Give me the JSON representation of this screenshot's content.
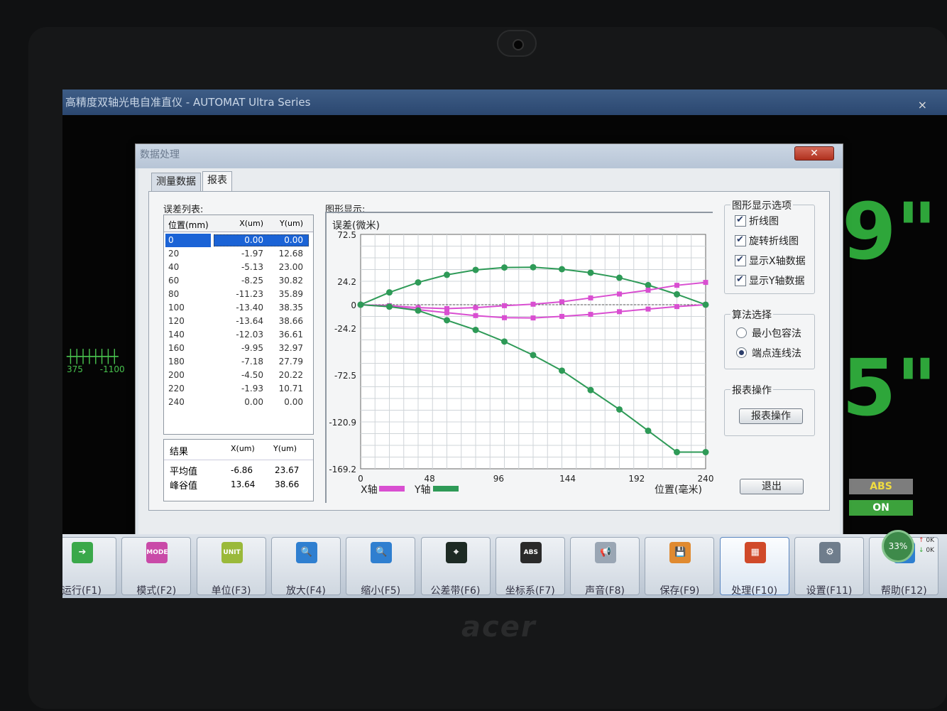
{
  "main_window": {
    "title": "高精度双轴光电自准直仪 - AUTOMAT Ultra Series",
    "close": "×"
  },
  "background": {
    "digit_top": "9\"",
    "digit_bottom": "5\"",
    "ruler_left": "375",
    "ruler_right": "-1100",
    "badge_abs": "ABS",
    "badge_on": "ON"
  },
  "dialog": {
    "title": "数据处理",
    "close": "✕",
    "tabs": [
      "测量数据",
      "报表"
    ],
    "error_list_label": "误差列表:",
    "graph_label": "图形显示:",
    "table_headers": {
      "pos": "位置(mm)",
      "x": "X(um)",
      "y": "Y(um)"
    },
    "rows": [
      {
        "pos": "0",
        "x": "0.00",
        "y": "0.00"
      },
      {
        "pos": "20",
        "x": "-1.97",
        "y": "12.68"
      },
      {
        "pos": "40",
        "x": "-5.13",
        "y": "23.00"
      },
      {
        "pos": "60",
        "x": "-8.25",
        "y": "30.82"
      },
      {
        "pos": "80",
        "x": "-11.23",
        "y": "35.89"
      },
      {
        "pos": "100",
        "x": "-13.40",
        "y": "38.35"
      },
      {
        "pos": "120",
        "x": "-13.64",
        "y": "38.66"
      },
      {
        "pos": "140",
        "x": "-12.03",
        "y": "36.61"
      },
      {
        "pos": "160",
        "x": "-9.95",
        "y": "32.97"
      },
      {
        "pos": "180",
        "x": "-7.18",
        "y": "27.79"
      },
      {
        "pos": "200",
        "x": "-4.50",
        "y": "20.22"
      },
      {
        "pos": "220",
        "x": "-1.93",
        "y": "10.71"
      },
      {
        "pos": "240",
        "x": "0.00",
        "y": "0.00"
      }
    ],
    "result_headers": {
      "label": "结果",
      "x": "X(um)",
      "y": "Y(um)"
    },
    "results": [
      {
        "label": "平均值",
        "x": "-6.86",
        "y": "23.67"
      },
      {
        "label": "峰谷值",
        "x": "13.64",
        "y": "38.66"
      }
    ],
    "options": {
      "display_title": "图形显示选项",
      "checkboxes": [
        "折线图",
        "旋转折线图",
        "显示X轴数据",
        "显示Y轴数据"
      ],
      "algo_title": "算法选择",
      "radios": [
        {
          "label": "最小包容法",
          "selected": false
        },
        {
          "label": "端点连线法",
          "selected": true
        }
      ],
      "report_title": "报表操作",
      "report_button": "报表操作",
      "exit_button": "退出"
    }
  },
  "chart_data": {
    "type": "line",
    "ylabel": "误差(微米)",
    "xlabel": "位置(毫米)",
    "xlim": [
      0,
      240
    ],
    "ylim": [
      -169.2,
      72.5
    ],
    "x_ticks": [
      "0",
      "48",
      "96",
      "144",
      "192",
      "240"
    ],
    "y_ticks": [
      "72.5",
      "24.2",
      "0",
      "-24.2",
      "-72.5",
      "-120.9",
      "-169.2"
    ],
    "grid": true,
    "x": [
      0,
      20,
      40,
      60,
      80,
      100,
      120,
      140,
      160,
      180,
      200,
      220,
      240
    ],
    "series": [
      {
        "name": "X轴",
        "color": "#d94fd1",
        "values": [
          0,
          -1.97,
          -5.13,
          -8.25,
          -11.23,
          -13.4,
          -13.64,
          -12.03,
          -9.95,
          -7.18,
          -4.5,
          -1.93,
          0
        ]
      },
      {
        "name": "Y轴",
        "color": "#2e9a57",
        "values": [
          0,
          12.68,
          23.0,
          30.82,
          35.89,
          38.35,
          38.66,
          36.61,
          32.97,
          27.79,
          20.22,
          10.71,
          0
        ]
      },
      {
        "color": "#d94fd1",
        "values": [
          0,
          -1.0,
          -3.0,
          -4.0,
          -3.0,
          -1.0,
          0.5,
          3.0,
          7.0,
          11.0,
          15.0,
          20.0,
          23.0
        ]
      },
      {
        "color": "#2e9a57",
        "values": [
          0,
          -2.0,
          -6.0,
          -16.0,
          -26.0,
          -38.0,
          -52.0,
          -68.0,
          -88.0,
          -108.0,
          -130.0,
          -152.0,
          -152.0
        ]
      }
    ]
  },
  "toolbar": [
    {
      "label": "运行(F1)",
      "icon": "arrow-right-icon",
      "color": "#3aa84a",
      "glyph": "➔"
    },
    {
      "label": "模式(F2)",
      "icon": "mode-icon",
      "color": "#c94aa8",
      "glyph": "MODE"
    },
    {
      "label": "单位(F3)",
      "icon": "unit-icon",
      "color": "#9ab93a",
      "glyph": "UNIT"
    },
    {
      "label": "放大(F4)",
      "icon": "zoom-in-icon",
      "color": "#2f7fd0",
      "glyph": "🔍"
    },
    {
      "label": "缩小(F5)",
      "icon": "zoom-out-icon",
      "color": "#2f7fd0",
      "glyph": "🔍"
    },
    {
      "label": "公差带(F6)",
      "icon": "tolerance-icon",
      "color": "#1d2a24",
      "glyph": "⌖"
    },
    {
      "label": "坐标系(F7)",
      "icon": "coordinate-icon",
      "color": "#2a2a2a",
      "glyph": "ABS"
    },
    {
      "label": "声音(F8)",
      "icon": "sound-icon",
      "color": "#9aa6b4",
      "glyph": "📢"
    },
    {
      "label": "保存(F9)",
      "icon": "save-icon",
      "color": "#e08a30",
      "glyph": "💾"
    },
    {
      "label": "处理(F10)",
      "icon": "process-icon",
      "color": "#d04a2a",
      "glyph": "▦"
    },
    {
      "label": "设置(F11)",
      "icon": "settings-icon",
      "color": "#6f7d8c",
      "glyph": "⚙"
    },
    {
      "label": "帮助(F12)",
      "icon": "help-icon",
      "color": "#2f7fd0",
      "glyph": "?"
    }
  ],
  "status": {
    "cpu": "33%",
    "speed_up": "0K",
    "speed_down": "0K"
  },
  "brand": "acer"
}
